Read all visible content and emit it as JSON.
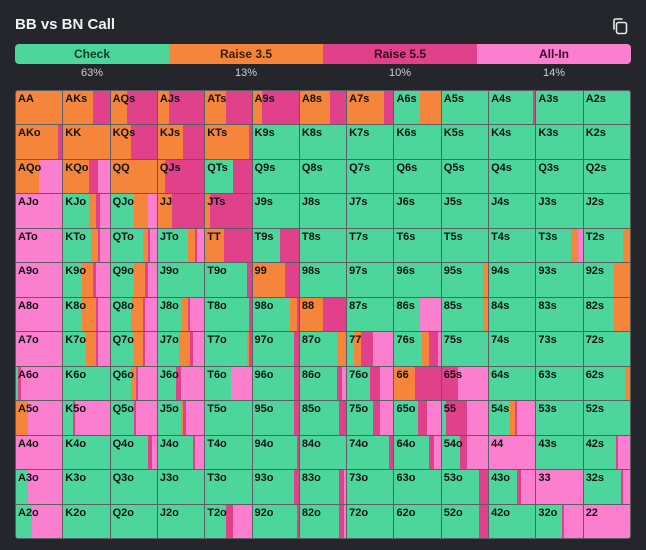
{
  "title": "BB vs BN Call",
  "colors": {
    "check": "#4cd69b",
    "raise35": "#f4853b",
    "raise55": "#e0418a",
    "allin": "#fb7fce"
  },
  "legend": [
    {
      "label": "Check",
      "color": "#4cd69b",
      "freq": "63%"
    },
    {
      "label": "Raise 3.5",
      "color": "#f4853b",
      "freq": "13%"
    },
    {
      "label": "Raise 5.5",
      "color": "#e0418a",
      "freq": "10%"
    },
    {
      "label": "All-In",
      "color": "#fb7fce",
      "freq": "14%"
    }
  ],
  "hands": [
    {
      "h": "AA",
      "m": [
        0,
        100,
        0,
        0
      ]
    },
    {
      "h": "AKs",
      "m": [
        0,
        65,
        35,
        0
      ]
    },
    {
      "h": "AQs",
      "m": [
        0,
        35,
        65,
        0
      ]
    },
    {
      "h": "AJs",
      "m": [
        0,
        25,
        75,
        0
      ]
    },
    {
      "h": "ATs",
      "m": [
        0,
        45,
        55,
        0
      ]
    },
    {
      "h": "A9s",
      "m": [
        0,
        20,
        80,
        0
      ]
    },
    {
      "h": "A8s",
      "m": [
        0,
        65,
        35,
        0
      ]
    },
    {
      "h": "A7s",
      "m": [
        0,
        80,
        20,
        0
      ]
    },
    {
      "h": "A6s",
      "m": [
        55,
        45,
        0,
        0
      ]
    },
    {
      "h": "A5s",
      "m": [
        100,
        0,
        0,
        0
      ]
    },
    {
      "h": "A4s",
      "m": [
        95,
        0,
        5,
        0
      ]
    },
    {
      "h": "A3s",
      "m": [
        100,
        0,
        0,
        0
      ]
    },
    {
      "h": "A2s",
      "m": [
        100,
        0,
        0,
        0
      ]
    },
    {
      "h": "AKo",
      "m": [
        0,
        90,
        10,
        0
      ]
    },
    {
      "h": "KK",
      "m": [
        0,
        100,
        0,
        0
      ]
    },
    {
      "h": "KQs",
      "m": [
        0,
        45,
        55,
        0
      ]
    },
    {
      "h": "KJs",
      "m": [
        0,
        55,
        45,
        0
      ]
    },
    {
      "h": "KTs",
      "m": [
        0,
        95,
        5,
        0
      ]
    },
    {
      "h": "K9s",
      "m": [
        100,
        0,
        0,
        0
      ]
    },
    {
      "h": "K8s",
      "m": [
        100,
        0,
        0,
        0
      ]
    },
    {
      "h": "K7s",
      "m": [
        100,
        0,
        0,
        0
      ]
    },
    {
      "h": "K6s",
      "m": [
        100,
        0,
        0,
        0
      ]
    },
    {
      "h": "K5s",
      "m": [
        100,
        0,
        0,
        0
      ]
    },
    {
      "h": "K4s",
      "m": [
        100,
        0,
        0,
        0
      ]
    },
    {
      "h": "K3s",
      "m": [
        100,
        0,
        0,
        0
      ]
    },
    {
      "h": "K2s",
      "m": [
        100,
        0,
        0,
        0
      ]
    },
    {
      "h": "AQo",
      "m": [
        0,
        50,
        0,
        50
      ]
    },
    {
      "h": "KQo",
      "m": [
        0,
        55,
        20,
        25
      ]
    },
    {
      "h": "QQ",
      "m": [
        0,
        100,
        0,
        0
      ]
    },
    {
      "h": "QJs",
      "m": [
        0,
        15,
        85,
        0
      ]
    },
    {
      "h": "QTs",
      "m": [
        60,
        0,
        40,
        0
      ]
    },
    {
      "h": "Q9s",
      "m": [
        100,
        0,
        0,
        0
      ]
    },
    {
      "h": "Q8s",
      "m": [
        100,
        0,
        0,
        0
      ]
    },
    {
      "h": "Q7s",
      "m": [
        100,
        0,
        0,
        0
      ]
    },
    {
      "h": "Q6s",
      "m": [
        100,
        0,
        0,
        0
      ]
    },
    {
      "h": "Q5s",
      "m": [
        100,
        0,
        0,
        0
      ]
    },
    {
      "h": "Q4s",
      "m": [
        100,
        0,
        0,
        0
      ]
    },
    {
      "h": "Q3s",
      "m": [
        100,
        0,
        0,
        0
      ]
    },
    {
      "h": "Q2s",
      "m": [
        100,
        0,
        0,
        0
      ]
    },
    {
      "h": "AJo",
      "m": [
        0,
        0,
        0,
        100
      ]
    },
    {
      "h": "KJo",
      "m": [
        55,
        15,
        10,
        20
      ]
    },
    {
      "h": "QJo",
      "m": [
        50,
        30,
        0,
        20
      ]
    },
    {
      "h": "JJ",
      "m": [
        0,
        30,
        70,
        0
      ]
    },
    {
      "h": "JTs",
      "m": [
        0,
        10,
        90,
        0
      ]
    },
    {
      "h": "J9s",
      "m": [
        100,
        0,
        0,
        0
      ]
    },
    {
      "h": "J8s",
      "m": [
        100,
        0,
        0,
        0
      ]
    },
    {
      "h": "J7s",
      "m": [
        100,
        0,
        0,
        0
      ]
    },
    {
      "h": "J6s",
      "m": [
        100,
        0,
        0,
        0
      ]
    },
    {
      "h": "J5s",
      "m": [
        100,
        0,
        0,
        0
      ]
    },
    {
      "h": "J4s",
      "m": [
        100,
        0,
        0,
        0
      ]
    },
    {
      "h": "J3s",
      "m": [
        100,
        0,
        0,
        0
      ]
    },
    {
      "h": "J2s",
      "m": [
        100,
        0,
        0,
        0
      ]
    },
    {
      "h": "ATo",
      "m": [
        0,
        0,
        0,
        100
      ]
    },
    {
      "h": "KTo",
      "m": [
        60,
        15,
        5,
        20
      ]
    },
    {
      "h": "QTo",
      "m": [
        70,
        10,
        5,
        15
      ]
    },
    {
      "h": "JTo",
      "m": [
        65,
        15,
        5,
        15
      ]
    },
    {
      "h": "TT",
      "m": [
        0,
        40,
        60,
        0
      ]
    },
    {
      "h": "T9s",
      "m": [
        60,
        0,
        40,
        0
      ]
    },
    {
      "h": "T8s",
      "m": [
        100,
        0,
        0,
        0
      ]
    },
    {
      "h": "T7s",
      "m": [
        100,
        0,
        0,
        0
      ]
    },
    {
      "h": "T6s",
      "m": [
        100,
        0,
        0,
        0
      ]
    },
    {
      "h": "T5s",
      "m": [
        100,
        0,
        0,
        0
      ]
    },
    {
      "h": "T4s",
      "m": [
        100,
        0,
        0,
        0
      ]
    },
    {
      "h": "T3s",
      "m": [
        75,
        15,
        0,
        10
      ]
    },
    {
      "h": "T2s",
      "m": [
        85,
        15,
        0,
        0
      ]
    },
    {
      "h": "A9o",
      "m": [
        0,
        0,
        0,
        100
      ]
    },
    {
      "h": "K9o",
      "m": [
        40,
        25,
        5,
        30
      ]
    },
    {
      "h": "Q9o",
      "m": [
        50,
        25,
        5,
        20
      ]
    },
    {
      "h": "J9o",
      "m": [
        100,
        0,
        0,
        0
      ]
    },
    {
      "h": "T9o",
      "m": [
        90,
        0,
        10,
        0
      ]
    },
    {
      "h": "99",
      "m": [
        0,
        70,
        30,
        0
      ]
    },
    {
      "h": "98s",
      "m": [
        100,
        0,
        0,
        0
      ]
    },
    {
      "h": "97s",
      "m": [
        100,
        0,
        0,
        0
      ]
    },
    {
      "h": "96s",
      "m": [
        100,
        0,
        0,
        0
      ]
    },
    {
      "h": "95s",
      "m": [
        90,
        10,
        0,
        0
      ]
    },
    {
      "h": "94s",
      "m": [
        100,
        0,
        0,
        0
      ]
    },
    {
      "h": "93s",
      "m": [
        100,
        0,
        0,
        0
      ]
    },
    {
      "h": "92s",
      "m": [
        65,
        35,
        0,
        0
      ]
    },
    {
      "h": "A8o",
      "m": [
        0,
        0,
        0,
        100
      ]
    },
    {
      "h": "K8o",
      "m": [
        40,
        30,
        5,
        25
      ]
    },
    {
      "h": "Q8o",
      "m": [
        45,
        25,
        5,
        25
      ]
    },
    {
      "h": "J8o",
      "m": [
        50,
        15,
        5,
        30
      ]
    },
    {
      "h": "T8o",
      "m": [
        95,
        0,
        5,
        0
      ]
    },
    {
      "h": "98o",
      "m": [
        80,
        15,
        5,
        0
      ]
    },
    {
      "h": "88",
      "m": [
        0,
        50,
        50,
        0
      ]
    },
    {
      "h": "87s",
      "m": [
        100,
        0,
        0,
        0
      ]
    },
    {
      "h": "86s",
      "m": [
        55,
        0,
        0,
        45
      ]
    },
    {
      "h": "85s",
      "m": [
        90,
        10,
        0,
        0
      ]
    },
    {
      "h": "84s",
      "m": [
        100,
        0,
        0,
        0
      ]
    },
    {
      "h": "83s",
      "m": [
        100,
        0,
        0,
        0
      ]
    },
    {
      "h": "82s",
      "m": [
        65,
        35,
        0,
        0
      ]
    },
    {
      "h": "A7o",
      "m": [
        0,
        0,
        0,
        100
      ]
    },
    {
      "h": "K7o",
      "m": [
        50,
        20,
        5,
        25
      ]
    },
    {
      "h": "Q7o",
      "m": [
        50,
        20,
        5,
        25
      ]
    },
    {
      "h": "J7o",
      "m": [
        45,
        25,
        5,
        25
      ]
    },
    {
      "h": "T7o",
      "m": [
        90,
        5,
        5,
        0
      ]
    },
    {
      "h": "97o",
      "m": [
        90,
        0,
        10,
        0
      ]
    },
    {
      "h": "87o",
      "m": [
        80,
        20,
        0,
        0
      ]
    },
    {
      "h": "77",
      "m": [
        15,
        15,
        25,
        45
      ]
    },
    {
      "h": "76s",
      "m": [
        60,
        15,
        20,
        5
      ]
    },
    {
      "h": "75s",
      "m": [
        100,
        0,
        0,
        0
      ]
    },
    {
      "h": "74s",
      "m": [
        100,
        0,
        0,
        0
      ]
    },
    {
      "h": "73s",
      "m": [
        100,
        0,
        0,
        0
      ]
    },
    {
      "h": "72s",
      "m": [
        100,
        0,
        0,
        0
      ]
    },
    {
      "h": "A6o",
      "m": [
        5,
        0,
        5,
        90
      ]
    },
    {
      "h": "K6o",
      "m": [
        100,
        0,
        0,
        0
      ]
    },
    {
      "h": "Q6o",
      "m": [
        45,
        10,
        5,
        40
      ]
    },
    {
      "h": "J6o",
      "m": [
        40,
        0,
        10,
        50
      ]
    },
    {
      "h": "T6o",
      "m": [
        55,
        0,
        0,
        45
      ]
    },
    {
      "h": "96o",
      "m": [
        90,
        0,
        10,
        0
      ]
    },
    {
      "h": "86o",
      "m": [
        80,
        0,
        10,
        10
      ]
    },
    {
      "h": "76o",
      "m": [
        50,
        0,
        20,
        30
      ]
    },
    {
      "h": "66",
      "m": [
        0,
        45,
        55,
        0
      ]
    },
    {
      "h": "65s",
      "m": [
        0,
        0,
        35,
        65
      ]
    },
    {
      "h": "64s",
      "m": [
        100,
        0,
        0,
        0
      ]
    },
    {
      "h": "63s",
      "m": [
        100,
        0,
        0,
        0
      ]
    },
    {
      "h": "62s",
      "m": [
        90,
        10,
        0,
        0
      ]
    },
    {
      "h": "A5o",
      "m": [
        0,
        25,
        0,
        75
      ]
    },
    {
      "h": "K5o",
      "m": [
        20,
        0,
        5,
        75
      ]
    },
    {
      "h": "Q5o",
      "m": [
        50,
        0,
        5,
        45
      ]
    },
    {
      "h": "J5o",
      "m": [
        50,
        5,
        5,
        40
      ]
    },
    {
      "h": "T5o",
      "m": [
        100,
        0,
        0,
        0
      ]
    },
    {
      "h": "95o",
      "m": [
        90,
        0,
        10,
        0
      ]
    },
    {
      "h": "85o",
      "m": [
        85,
        0,
        15,
        0
      ]
    },
    {
      "h": "75o",
      "m": [
        55,
        0,
        15,
        30
      ]
    },
    {
      "h": "65o",
      "m": [
        50,
        0,
        20,
        30
      ]
    },
    {
      "h": "55",
      "m": [
        10,
        0,
        45,
        45
      ]
    },
    {
      "h": "54s",
      "m": [
        45,
        10,
        5,
        40
      ]
    },
    {
      "h": "53s",
      "m": [
        100,
        0,
        0,
        0
      ]
    },
    {
      "h": "52s",
      "m": [
        100,
        0,
        0,
        0
      ]
    },
    {
      "h": "A4o",
      "m": [
        0,
        0,
        0,
        100
      ]
    },
    {
      "h": "K4o",
      "m": [
        100,
        0,
        0,
        0
      ]
    },
    {
      "h": "Q4o",
      "m": [
        80,
        0,
        10,
        10
      ]
    },
    {
      "h": "J4o",
      "m": [
        75,
        0,
        5,
        20
      ]
    },
    {
      "h": "T4o",
      "m": [
        100,
        0,
        0,
        0
      ]
    },
    {
      "h": "94o",
      "m": [
        95,
        0,
        5,
        0
      ]
    },
    {
      "h": "84o",
      "m": [
        100,
        0,
        0,
        0
      ]
    },
    {
      "h": "74o",
      "m": [
        90,
        0,
        10,
        0
      ]
    },
    {
      "h": "64o",
      "m": [
        75,
        0,
        10,
        15
      ]
    },
    {
      "h": "54o",
      "m": [
        40,
        0,
        15,
        45
      ]
    },
    {
      "h": "44",
      "m": [
        0,
        0,
        0,
        100
      ]
    },
    {
      "h": "43s",
      "m": [
        100,
        0,
        0,
        0
      ]
    },
    {
      "h": "42s",
      "m": [
        70,
        0,
        5,
        25
      ]
    },
    {
      "h": "A3o",
      "m": [
        25,
        0,
        0,
        75
      ]
    },
    {
      "h": "K3o",
      "m": [
        100,
        0,
        0,
        0
      ]
    },
    {
      "h": "Q3o",
      "m": [
        100,
        0,
        0,
        0
      ]
    },
    {
      "h": "J3o",
      "m": [
        100,
        0,
        0,
        0
      ]
    },
    {
      "h": "T3o",
      "m": [
        100,
        0,
        0,
        0
      ]
    },
    {
      "h": "93o",
      "m": [
        90,
        0,
        10,
        0
      ]
    },
    {
      "h": "83o",
      "m": [
        85,
        0,
        10,
        5
      ]
    },
    {
      "h": "73o",
      "m": [
        100,
        0,
        0,
        0
      ]
    },
    {
      "h": "63o",
      "m": [
        100,
        0,
        0,
        0
      ]
    },
    {
      "h": "53o",
      "m": [
        80,
        0,
        20,
        0
      ]
    },
    {
      "h": "43o",
      "m": [
        60,
        0,
        10,
        30
      ]
    },
    {
      "h": "33",
      "m": [
        0,
        0,
        0,
        100
      ]
    },
    {
      "h": "32s",
      "m": [
        80,
        0,
        5,
        15
      ]
    },
    {
      "h": "A2o",
      "m": [
        35,
        0,
        0,
        65
      ]
    },
    {
      "h": "K2o",
      "m": [
        100,
        0,
        0,
        0
      ]
    },
    {
      "h": "Q2o",
      "m": [
        100,
        0,
        0,
        0
      ]
    },
    {
      "h": "J2o",
      "m": [
        100,
        0,
        0,
        0
      ]
    },
    {
      "h": "T2o",
      "m": [
        45,
        0,
        15,
        40
      ]
    },
    {
      "h": "92o",
      "m": [
        95,
        0,
        5,
        0
      ]
    },
    {
      "h": "82o",
      "m": [
        85,
        0,
        10,
        5
      ]
    },
    {
      "h": "72o",
      "m": [
        100,
        0,
        0,
        0
      ]
    },
    {
      "h": "62o",
      "m": [
        100,
        0,
        0,
        0
      ]
    },
    {
      "h": "52o",
      "m": [
        80,
        0,
        20,
        0
      ]
    },
    {
      "h": "42o",
      "m": [
        100,
        0,
        0,
        0
      ]
    },
    {
      "h": "32o",
      "m": [
        55,
        0,
        5,
        40
      ]
    },
    {
      "h": "22",
      "m": [
        0,
        0,
        0,
        100
      ]
    }
  ]
}
